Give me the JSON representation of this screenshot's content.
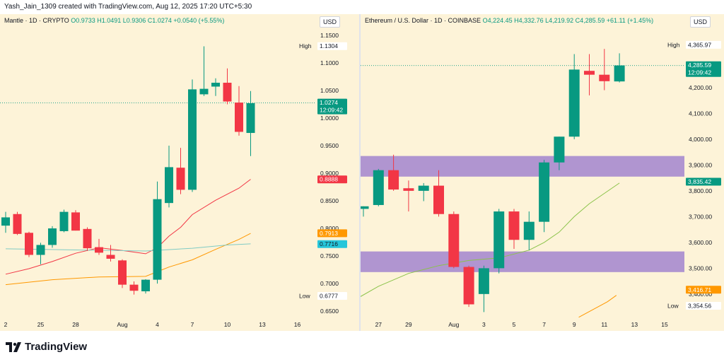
{
  "header": "Yash_Jain_1309 created with TradingView.com, Aug 12, 2025 17:20 UTC+5:30",
  "brand": "TradingView",
  "colors": {
    "up": "#089981",
    "down": "#f23645",
    "bg": "#fdf3d8",
    "zone": "#9575cd"
  },
  "chart_data": [
    {
      "type": "candlestick",
      "title": "Mantle · 1D · CRYPTO",
      "ohlc_text": "O0.9733 H1.0491 L0.9306 C1.0274 +0.0540 (+5.55%)",
      "currency": "USD",
      "ylim": [
        0.645,
        1.155
      ],
      "y_ticks": [
        "1.1500",
        "1.1000",
        "1.0500",
        "1.0000",
        "0.9500",
        "0.9000",
        "0.8500",
        "0.8000",
        "0.7500",
        "0.7000",
        "0.6500"
      ],
      "x_ticks": [
        {
          "i": 0,
          "label": "2"
        },
        {
          "i": 3,
          "label": "25"
        },
        {
          "i": 6,
          "label": "28"
        },
        {
          "i": 10,
          "label": "Aug"
        },
        {
          "i": 13,
          "label": "4"
        },
        {
          "i": 16,
          "label": "7"
        },
        {
          "i": 19,
          "label": "10"
        },
        {
          "i": 22,
          "label": "13"
        },
        {
          "i": 25,
          "label": "16"
        }
      ],
      "candles": [
        {
          "i": 0,
          "o": 0.805,
          "h": 0.83,
          "l": 0.792,
          "c": 0.82
        },
        {
          "i": 1,
          "o": 0.826,
          "h": 0.83,
          "l": 0.788,
          "c": 0.79
        },
        {
          "i": 2,
          "o": 0.792,
          "h": 0.794,
          "l": 0.748,
          "c": 0.752
        },
        {
          "i": 3,
          "o": 0.752,
          "h": 0.774,
          "l": 0.735,
          "c": 0.77
        },
        {
          "i": 4,
          "o": 0.77,
          "h": 0.804,
          "l": 0.765,
          "c": 0.8
        },
        {
          "i": 5,
          "o": 0.795,
          "h": 0.834,
          "l": 0.793,
          "c": 0.83
        },
        {
          "i": 6,
          "o": 0.829,
          "h": 0.833,
          "l": 0.796,
          "c": 0.796
        },
        {
          "i": 7,
          "o": 0.799,
          "h": 0.802,
          "l": 0.759,
          "c": 0.764
        },
        {
          "i": 8,
          "o": 0.766,
          "h": 0.781,
          "l": 0.752,
          "c": 0.756
        },
        {
          "i": 9,
          "o": 0.752,
          "h": 0.77,
          "l": 0.74,
          "c": 0.745
        },
        {
          "i": 10,
          "o": 0.742,
          "h": 0.744,
          "l": 0.692,
          "c": 0.698
        },
        {
          "i": 11,
          "o": 0.698,
          "h": 0.704,
          "l": 0.68,
          "c": 0.687
        },
        {
          "i": 12,
          "o": 0.686,
          "h": 0.708,
          "l": 0.682,
          "c": 0.707
        },
        {
          "i": 13,
          "o": 0.707,
          "h": 0.885,
          "l": 0.7,
          "c": 0.853
        },
        {
          "i": 14,
          "o": 0.846,
          "h": 0.95,
          "l": 0.838,
          "c": 0.911
        },
        {
          "i": 15,
          "o": 0.91,
          "h": 0.946,
          "l": 0.862,
          "c": 0.87
        },
        {
          "i": 16,
          "o": 0.87,
          "h": 1.07,
          "l": 0.866,
          "c": 1.052
        },
        {
          "i": 17,
          "o": 1.043,
          "h": 1.13,
          "l": 1.04,
          "c": 1.053
        },
        {
          "i": 18,
          "o": 1.057,
          "h": 1.072,
          "l": 1.04,
          "c": 1.064
        },
        {
          "i": 19,
          "o": 1.064,
          "h": 1.09,
          "l": 1.025,
          "c": 1.03
        },
        {
          "i": 20,
          "o": 1.028,
          "h": 1.058,
          "l": 0.968,
          "c": 0.975
        },
        {
          "i": 21,
          "o": 0.973,
          "h": 1.049,
          "l": 0.931,
          "c": 1.027
        }
      ],
      "lines": [
        {
          "color": "#f23645",
          "points": [
            [
              0,
              0.717
            ],
            [
              2,
              0.727
            ],
            [
              4,
              0.74
            ],
            [
              6,
              0.755
            ],
            [
              8,
              0.765
            ],
            [
              10,
              0.76
            ],
            [
              12,
              0.754
            ],
            [
              13,
              0.765
            ],
            [
              14,
              0.786
            ],
            [
              15,
              0.802
            ],
            [
              16,
              0.825
            ],
            [
              18,
              0.851
            ],
            [
              20,
              0.873
            ],
            [
              21,
              0.889
            ]
          ]
        },
        {
          "color": "#ff9800",
          "points": [
            [
              0,
              0.698
            ],
            [
              4,
              0.707
            ],
            [
              8,
              0.712
            ],
            [
              12,
              0.713
            ],
            [
              14,
              0.73
            ],
            [
              16,
              0.743
            ],
            [
              18,
              0.762
            ],
            [
              20,
              0.78
            ],
            [
              21,
              0.791
            ]
          ]
        },
        {
          "color": "#80cbc4",
          "points": [
            [
              0,
              0.763
            ],
            [
              6,
              0.761
            ],
            [
              12,
              0.759
            ],
            [
              16,
              0.764
            ],
            [
              19,
              0.77
            ],
            [
              21,
              0.772
            ]
          ]
        }
      ],
      "dotted_level": 1.0274,
      "labels": [
        {
          "text": "1.1304",
          "value": 1.1304,
          "bg": "#ffffff",
          "fg": "#131722",
          "prefix": "High"
        },
        {
          "text": "1.0274",
          "text2": "12:09:42",
          "value": 1.0274,
          "bg": "#089981",
          "fg": "#ffffff"
        },
        {
          "text": "0.8888",
          "value": 0.8888,
          "bg": "#f23645",
          "fg": "#ffffff"
        },
        {
          "text": "0.7913",
          "value": 0.7913,
          "bg": "#ff9800",
          "fg": "#ffffff"
        },
        {
          "text": "0.7716",
          "value": 0.7716,
          "bg": "#26c6da",
          "fg": "#131722"
        },
        {
          "text": "0.6777",
          "value": 0.6777,
          "bg": "#ffffff",
          "fg": "#131722",
          "prefix": "Low"
        }
      ]
    },
    {
      "type": "candlestick",
      "title": "Ethereum / U.S. Dollar · 1D · COINBASE",
      "ohlc_text": "O4,224.45 H4,332.76 L4,219.92 C4,285.59 +61.11 (+1.45%)",
      "currency": "USD",
      "ylim": [
        3290,
        4430
      ],
      "y_ticks": [
        "4,200.00",
        "4,100.00",
        "4,000.00",
        "3,900.00",
        "3,800.00",
        "3,700.00",
        "3,600.00",
        "3,500.00",
        "3,400.00"
      ],
      "x_ticks": [
        {
          "i": 1,
          "label": "27"
        },
        {
          "i": 3,
          "label": "29"
        },
        {
          "i": 6,
          "label": "Aug"
        },
        {
          "i": 8,
          "label": "3"
        },
        {
          "i": 10,
          "label": "5"
        },
        {
          "i": 12,
          "label": "7"
        },
        {
          "i": 14,
          "label": "9"
        },
        {
          "i": 16,
          "label": "11"
        },
        {
          "i": 18,
          "label": "13"
        },
        {
          "i": 20,
          "label": "15"
        }
      ],
      "candles": [
        {
          "i": 0,
          "o": 3730,
          "h": 3740,
          "l": 3700,
          "c": 3740
        },
        {
          "i": 1,
          "o": 3745,
          "h": 3885,
          "l": 3740,
          "c": 3880
        },
        {
          "i": 2,
          "o": 3880,
          "h": 3940,
          "l": 3800,
          "c": 3805
        },
        {
          "i": 3,
          "o": 3810,
          "h": 3840,
          "l": 3720,
          "c": 3800
        },
        {
          "i": 4,
          "o": 3800,
          "h": 3830,
          "l": 3760,
          "c": 3820
        },
        {
          "i": 5,
          "o": 3820,
          "h": 3880,
          "l": 3700,
          "c": 3710
        },
        {
          "i": 6,
          "o": 3710,
          "h": 3720,
          "l": 3500,
          "c": 3505
        },
        {
          "i": 7,
          "o": 3505,
          "h": 3510,
          "l": 3350,
          "c": 3360
        },
        {
          "i": 8,
          "o": 3400,
          "h": 3510,
          "l": 3330,
          "c": 3500
        },
        {
          "i": 9,
          "o": 3500,
          "h": 3730,
          "l": 3480,
          "c": 3720
        },
        {
          "i": 10,
          "o": 3720,
          "h": 3730,
          "l": 3575,
          "c": 3610
        },
        {
          "i": 11,
          "o": 3610,
          "h": 3720,
          "l": 3570,
          "c": 3680
        },
        {
          "i": 12,
          "o": 3680,
          "h": 3920,
          "l": 3640,
          "c": 3910
        },
        {
          "i": 13,
          "o": 3910,
          "h": 4010,
          "l": 3880,
          "c": 4010
        },
        {
          "i": 14,
          "o": 4010,
          "h": 4330,
          "l": 4000,
          "c": 4270
        },
        {
          "i": 15,
          "o": 4265,
          "h": 4330,
          "l": 4170,
          "c": 4250
        },
        {
          "i": 16,
          "o": 4250,
          "h": 4350,
          "l": 4190,
          "c": 4225
        },
        {
          "i": 17,
          "o": 4224,
          "h": 4333,
          "l": 4220,
          "c": 4286
        }
      ],
      "lines": [
        {
          "color": "#8bc34a",
          "points": [
            [
              -0.5,
              3380
            ],
            [
              1,
              3430
            ],
            [
              3,
              3480
            ],
            [
              5,
              3510
            ],
            [
              7,
              3530
            ],
            [
              9,
              3540
            ],
            [
              11,
              3570
            ],
            [
              12,
              3600
            ],
            [
              13,
              3640
            ],
            [
              14,
              3700
            ],
            [
              15,
              3750
            ],
            [
              16,
              3790
            ],
            [
              17,
              3830
            ]
          ]
        },
        {
          "color": "#ff9800",
          "points": [
            [
              14.3,
              3310
            ],
            [
              16.2,
              3370
            ],
            [
              16.8,
              3395
            ]
          ]
        }
      ],
      "zones": [
        {
          "from": 3855,
          "to": 3935
        },
        {
          "from": 3485,
          "to": 3565
        }
      ],
      "dotted_level": 4285.59,
      "labels": [
        {
          "text": "4,365.97",
          "value": 4365.97,
          "bg": "#ffffff",
          "fg": "#131722",
          "prefix": "High"
        },
        {
          "text": "4,285.59",
          "text2": "12:09:42",
          "value": 4285.59,
          "bg": "#089981",
          "fg": "#ffffff"
        },
        {
          "text": "3,835.42",
          "value": 3835.42,
          "bg": "#089981",
          "fg": "#ffffff"
        },
        {
          "text": "3,416.71",
          "value": 3416.71,
          "bg": "#ff9800",
          "fg": "#ffffff"
        },
        {
          "text": "3,354.56",
          "value": 3354.56,
          "bg": "#ffffff",
          "fg": "#131722",
          "prefix": "Low"
        }
      ]
    }
  ]
}
